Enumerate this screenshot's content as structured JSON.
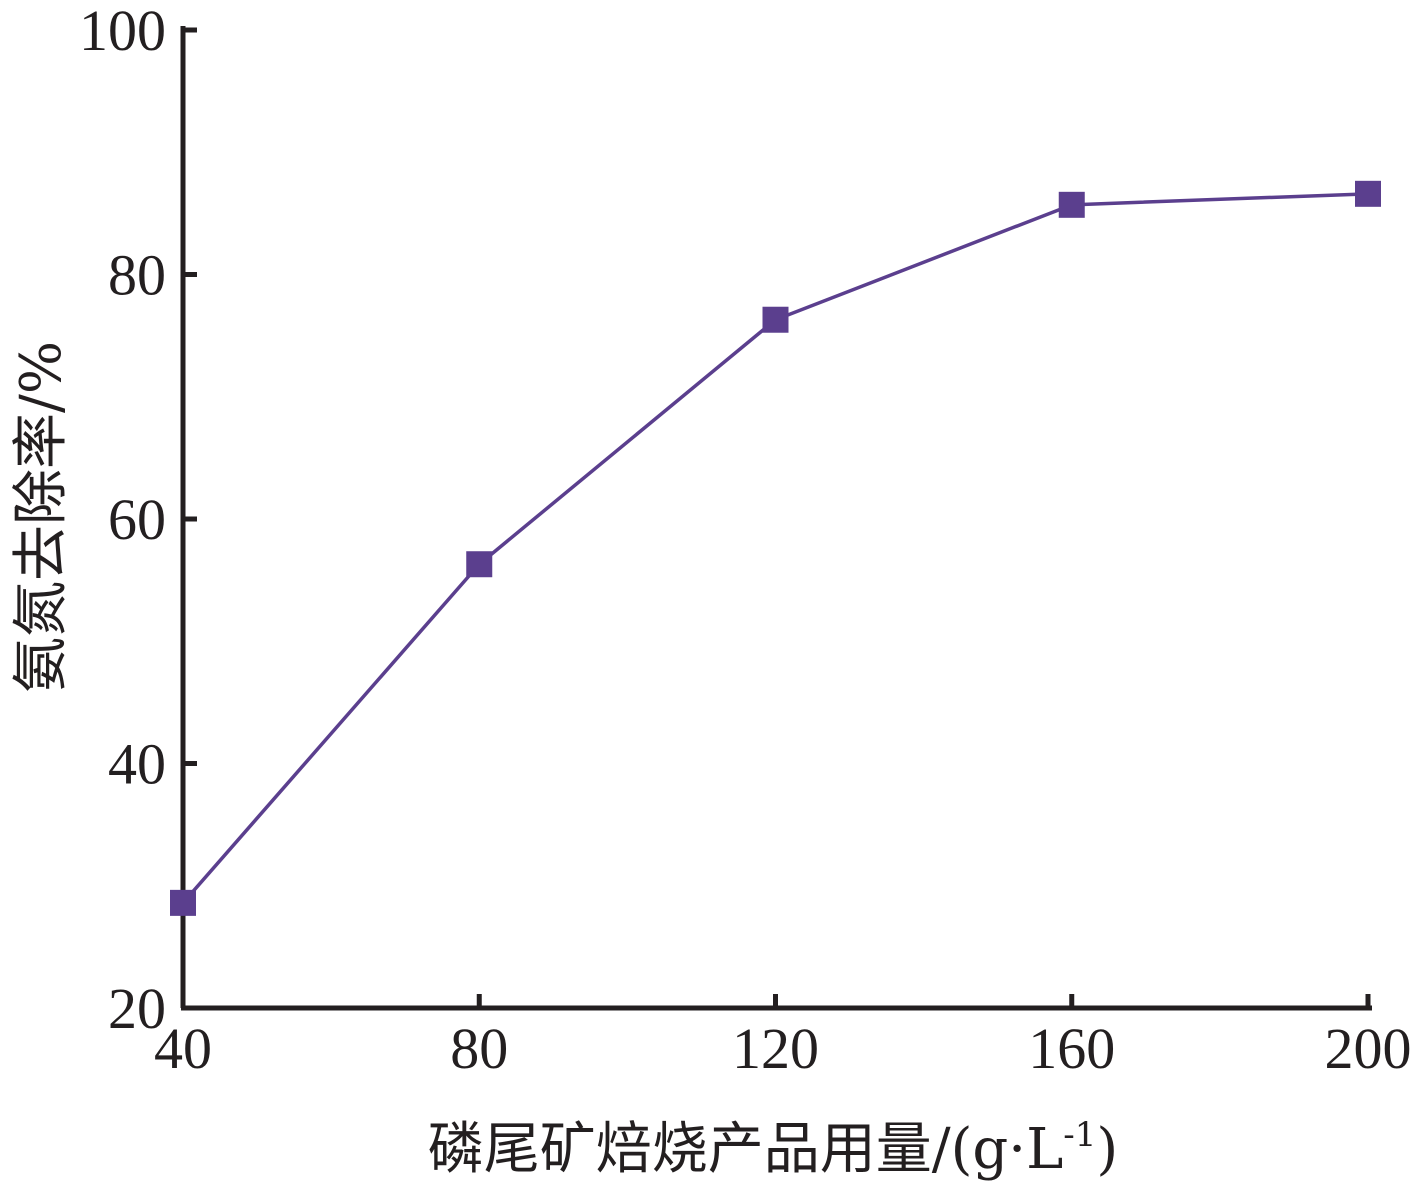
{
  "chart_data": {
    "type": "line",
    "title": "",
    "xlabel": "磷尾矿焙烧产品用量/(g·L",
    "xlabel_sup": "-1",
    "xlabel_close": ")",
    "ylabel": "氨氮去除率/%",
    "xlim": [
      40,
      200
    ],
    "ylim": [
      20,
      100
    ],
    "x_ticks": [
      40,
      80,
      120,
      160,
      200
    ],
    "y_ticks": [
      20,
      40,
      60,
      80,
      100
    ],
    "x_tick_labels": [
      "40",
      "80",
      "120",
      "160",
      "200"
    ],
    "y_tick_labels": [
      "20",
      "40",
      "60",
      "80",
      "100"
    ],
    "grid": false,
    "series": [
      {
        "color": "#5b3f8e",
        "marker": "square",
        "x": [
          40,
          80,
          120,
          160,
          200
        ],
        "y": [
          28.6,
          56.3,
          76.3,
          85.7,
          86.6
        ]
      }
    ]
  }
}
